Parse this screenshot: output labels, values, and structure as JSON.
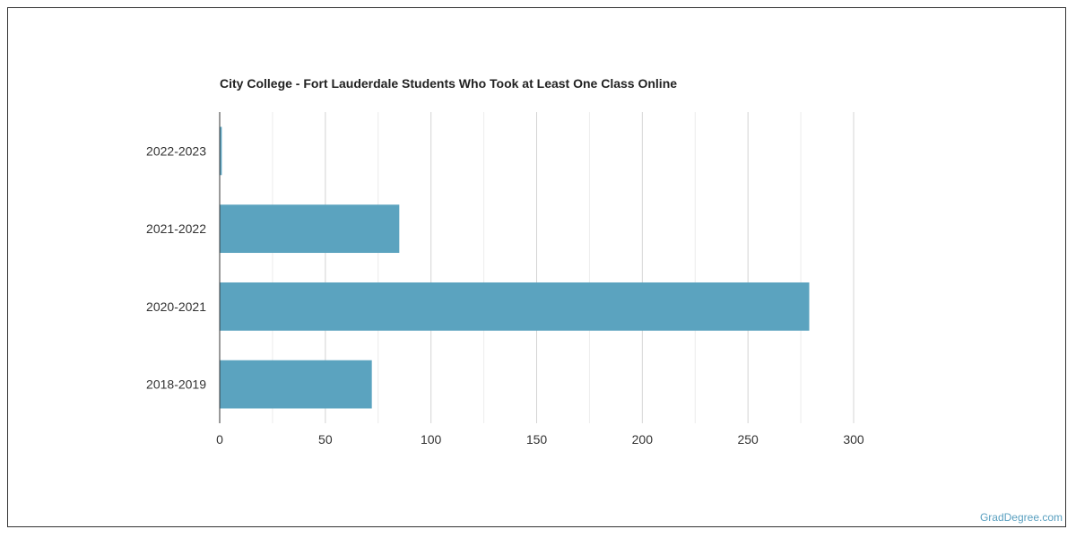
{
  "chart_data": {
    "type": "bar",
    "orientation": "horizontal",
    "title": "City College - Fort Lauderdale Students Who Took at Least One Class Online",
    "xlabel": "",
    "ylabel": "",
    "categories": [
      "2022-2023",
      "2021-2022",
      "2020-2021",
      "2018-2019"
    ],
    "values": [
      1,
      85,
      279,
      72
    ],
    "xlim": [
      0,
      300
    ],
    "xticks": [
      0,
      50,
      100,
      150,
      200,
      250,
      300
    ],
    "grid": true,
    "bar_color": "#5ba3bf",
    "legend": "none"
  },
  "footer": {
    "watermark": "GradDegree.com"
  }
}
